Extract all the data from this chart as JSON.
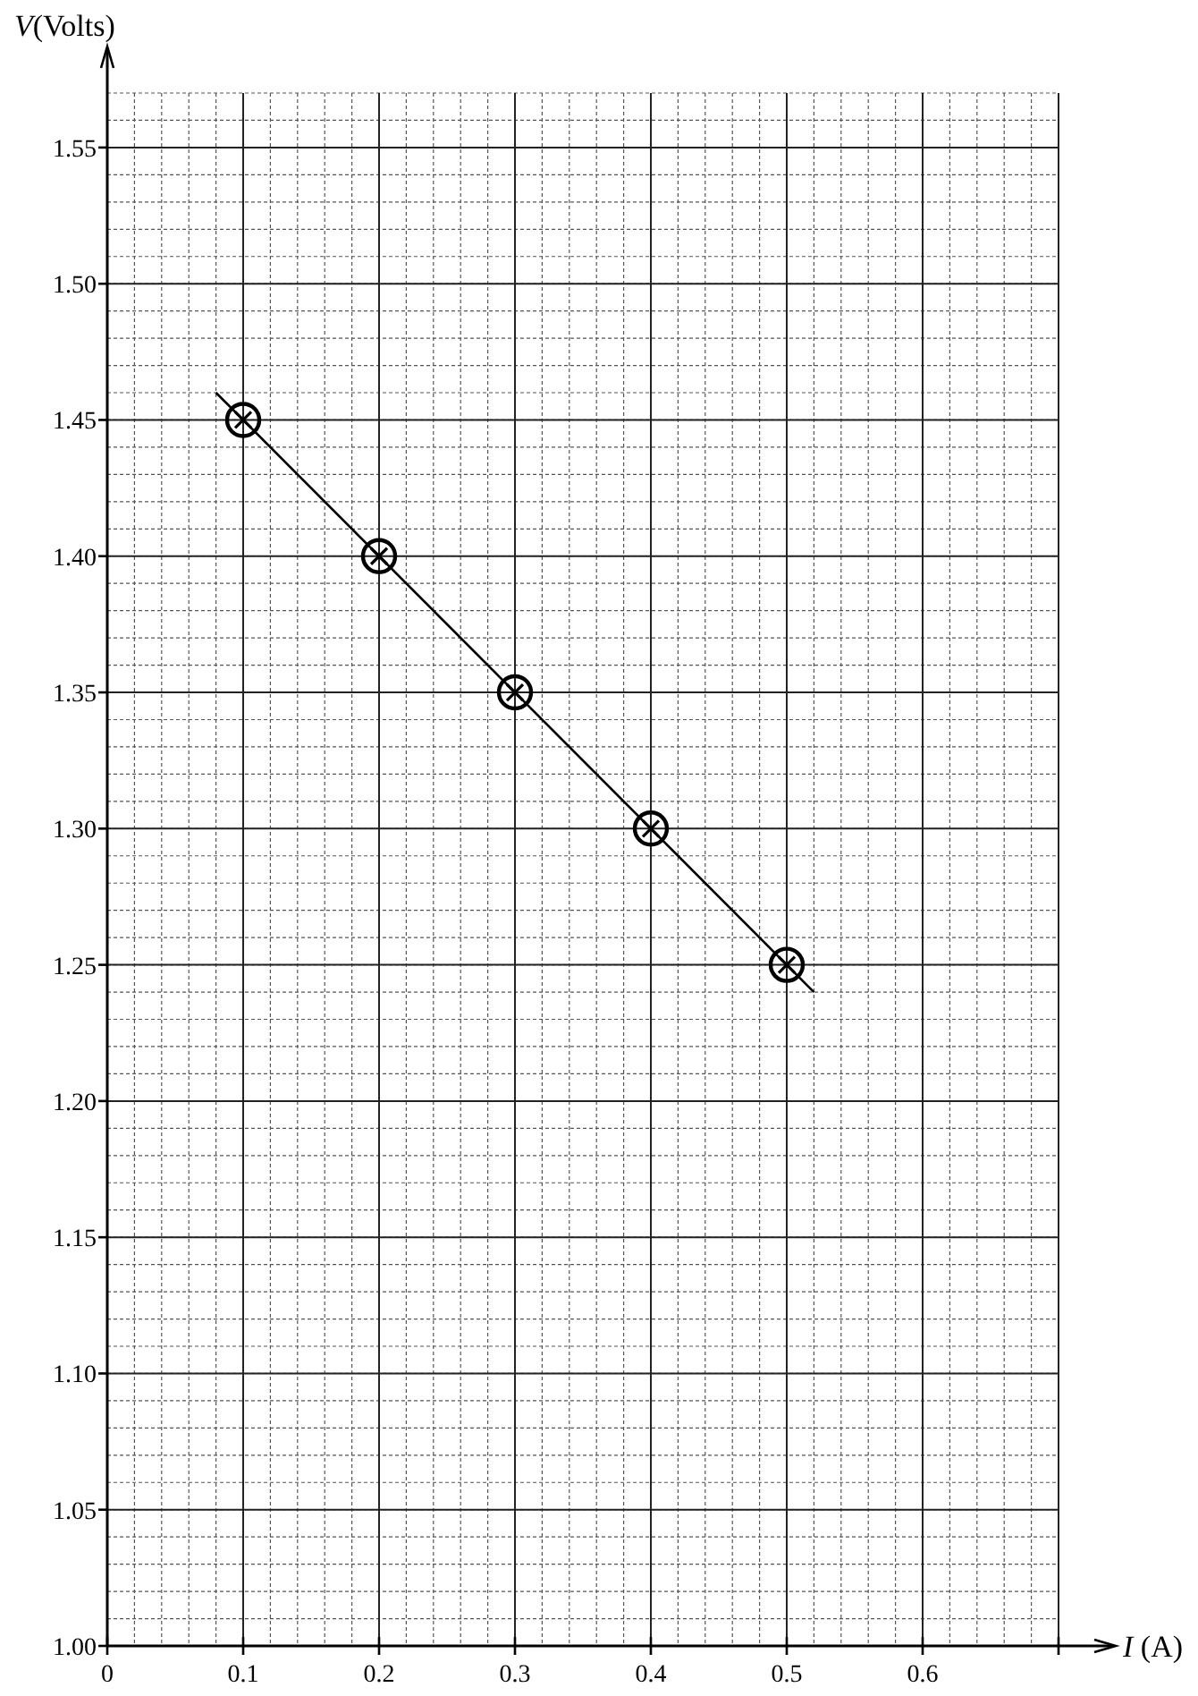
{
  "chart_data": {
    "type": "scatter",
    "xlabel": "I (A)",
    "ylabel": "V(Volts)",
    "xlim": [
      0,
      0.7
    ],
    "ylim": [
      1.0,
      1.57
    ],
    "xticks": [
      0,
      0.1,
      0.2,
      0.3,
      0.4,
      0.5,
      0.6,
      {
        "value": 0.7,
        "label": null
      }
    ],
    "yticks": [
      {
        "value": 1.0,
        "label": "1.00"
      },
      {
        "value": 1.05,
        "label": "1.05"
      },
      {
        "value": 1.1,
        "label": "1.10"
      },
      {
        "value": 1.15,
        "label": "1.15"
      },
      {
        "value": 1.2,
        "label": "1.20"
      },
      {
        "value": 1.25,
        "label": "1.25"
      },
      {
        "value": 1.3,
        "label": "1.30"
      },
      {
        "value": 1.35,
        "label": "1.35"
      },
      {
        "value": 1.4,
        "label": "1.40"
      },
      {
        "value": 1.45,
        "label": "1.45"
      },
      {
        "value": 1.5,
        "label": "1.50"
      },
      {
        "value": 1.55,
        "label": "1.55"
      }
    ],
    "grid": true,
    "marker": "circle",
    "series": [
      {
        "color": "#000000",
        "x": [
          0.1,
          0.2,
          0.3,
          0.4,
          0.5
        ],
        "values": [
          1.45,
          1.4,
          1.35,
          1.3,
          1.25
        ]
      },
      {
        "type": "line",
        "color": "#000000",
        "marker": "none",
        "line_style": "solid",
        "x": [
          0.08,
          0.52
        ],
        "values": [
          1.46,
          1.24
        ]
      }
    ]
  }
}
